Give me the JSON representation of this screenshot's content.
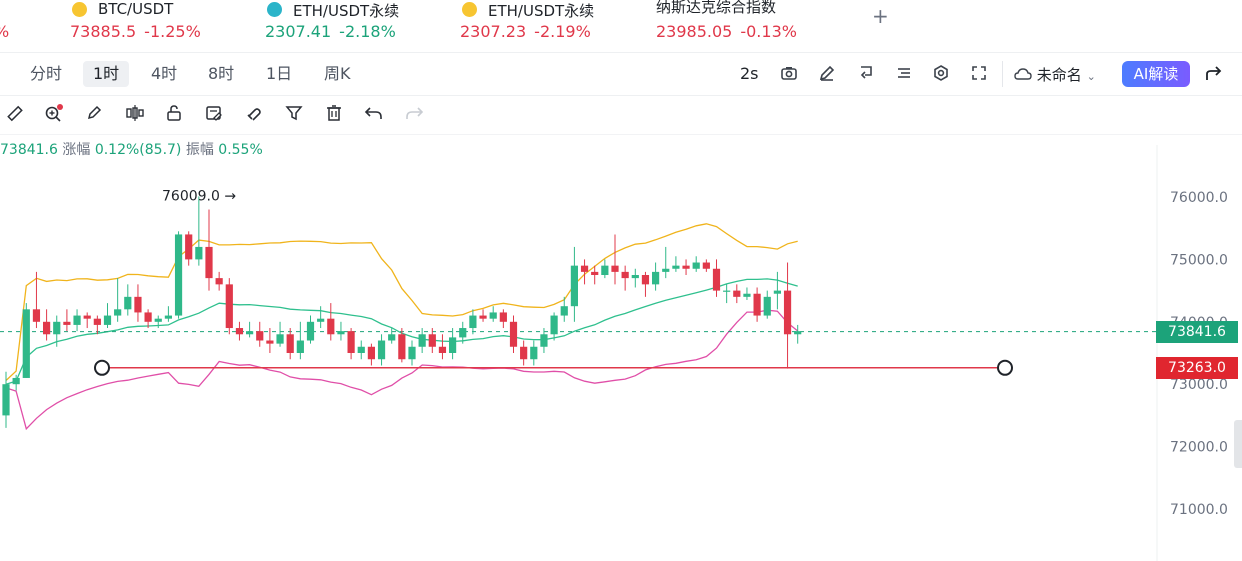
{
  "tickers": [
    {
      "name": "",
      "price": "",
      "change": "%",
      "dir": "down",
      "icon": ""
    },
    {
      "name": "BTC/USDT",
      "price": "73885.5",
      "change": "-1.25%",
      "dir": "down",
      "icon": "btc-coin-icon"
    },
    {
      "name": "ETH/USDT永续",
      "price": "2307.41",
      "change": "-2.18%",
      "dir": "up",
      "icon": "eth-coin-icon"
    },
    {
      "name": "ETH/USDT永续",
      "price": "2307.23",
      "change": "-2.19%",
      "dir": "down",
      "icon": "eth-coin-icon"
    },
    {
      "name": "纳斯达克综合指数",
      "price": "23985.05",
      "change": "-0.13%",
      "dir": "down",
      "icon": ""
    }
  ],
  "add_tab": "+",
  "timeframes": [
    "分时",
    "1时",
    "4时",
    "8时",
    "1日",
    "周K"
  ],
  "active_timeframe": "1时",
  "toolbar": {
    "refresh_interval": "2s",
    "template_name": "未命名",
    "ai_button": "AI解读"
  },
  "draw_tools": [
    "ruler-icon",
    "zoom-icon",
    "brush-icon",
    "candle-style-icon",
    "lock-icon",
    "note-icon",
    "magnet-icon",
    "filter-icon",
    "trash-icon",
    "undo-icon",
    "redo-icon"
  ],
  "info": {
    "last": "73841.6",
    "change_label": "涨幅",
    "change_value": "0.12%(85.7)",
    "amp_label": "振幅",
    "amp_value": "0.55%"
  },
  "chart_data": {
    "type": "candlestick",
    "ylim": [
      70500,
      76700
    ],
    "y_ticks": [
      "76000.0",
      "75000.0",
      "74000.0",
      "73000.0",
      "72000.0",
      "71000.0"
    ],
    "current_price": "73841.6",
    "line_price": "73263.0",
    "high_annotation": "76009.0",
    "colors": {
      "up": "#2fb889",
      "down": "#e0384a",
      "upper_band": "#f0b41c",
      "mid_band": "#2fc08e",
      "lower_band": "#e04fa8",
      "hline": "#e0384a"
    },
    "candles": [
      [
        72500,
        73000,
        72300,
        73200
      ],
      [
        73000,
        73100,
        72900,
        73150
      ],
      [
        73100,
        74200,
        73100,
        74300
      ],
      [
        74200,
        74000,
        73900,
        74800
      ],
      [
        74000,
        73800,
        73700,
        74200
      ],
      [
        73800,
        74000,
        73600,
        74100
      ],
      [
        74000,
        73950,
        73850,
        74200
      ],
      [
        73950,
        74100,
        73850,
        74200
      ],
      [
        74100,
        74050,
        73900,
        74150
      ],
      [
        74050,
        73950,
        73800,
        74100
      ],
      [
        73950,
        74100,
        73900,
        74300
      ],
      [
        74100,
        74200,
        74000,
        74700
      ],
      [
        74200,
        74400,
        74100,
        74600
      ],
      [
        74400,
        74150,
        74000,
        74600
      ],
      [
        74150,
        74000,
        73900,
        74200
      ],
      [
        74000,
        74050,
        73900,
        74100
      ],
      [
        74050,
        74100,
        74000,
        74250
      ],
      [
        74100,
        75400,
        74050,
        75450
      ],
      [
        75400,
        75000,
        74900,
        75450
      ],
      [
        75000,
        75200,
        74900,
        76009
      ],
      [
        75200,
        74700,
        74500,
        75800
      ],
      [
        74700,
        74600,
        74500,
        74800
      ],
      [
        74600,
        73900,
        73800,
        74700
      ],
      [
        73900,
        73800,
        73700,
        74000
      ],
      [
        73800,
        73850,
        73750,
        74000
      ],
      [
        73850,
        73700,
        73600,
        74000
      ],
      [
        73700,
        73650,
        73500,
        73900
      ],
      [
        73650,
        73800,
        73600,
        74000
      ],
      [
        73800,
        73500,
        73400,
        73900
      ],
      [
        73500,
        73700,
        73400,
        74000
      ],
      [
        73700,
        74000,
        73650,
        74100
      ],
      [
        74000,
        74050,
        73900,
        74250
      ],
      [
        74050,
        73800,
        73700,
        74300
      ],
      [
        73800,
        73850,
        73700,
        74000
      ],
      [
        73850,
        73500,
        73400,
        73900
      ],
      [
        73500,
        73600,
        73400,
        73700
      ],
      [
        73600,
        73400,
        73300,
        73650
      ],
      [
        73400,
        73700,
        73300,
        73800
      ],
      [
        73700,
        73800,
        73650,
        73900
      ],
      [
        73800,
        73400,
        73350,
        73900
      ],
      [
        73400,
        73600,
        73300,
        73700
      ],
      [
        73600,
        73800,
        73500,
        73900
      ],
      [
        73800,
        73600,
        73500,
        73900
      ],
      [
        73600,
        73500,
        73400,
        73800
      ],
      [
        73500,
        73750,
        73400,
        73900
      ],
      [
        73750,
        73900,
        73650,
        74000
      ],
      [
        73900,
        74100,
        73800,
        74200
      ],
      [
        74100,
        74050,
        74000,
        74200
      ],
      [
        74050,
        74150,
        74000,
        74250
      ],
      [
        74150,
        74000,
        73900,
        74200
      ],
      [
        74000,
        73600,
        73500,
        74100
      ],
      [
        73600,
        73400,
        73300,
        73700
      ],
      [
        73400,
        73600,
        73300,
        73700
      ],
      [
        73600,
        73800,
        73500,
        73900
      ],
      [
        73800,
        74100,
        73700,
        74150
      ],
      [
        74100,
        74250,
        74000,
        74400
      ],
      [
        74250,
        74900,
        74000,
        75200
      ],
      [
        74900,
        74800,
        74600,
        75000
      ],
      [
        74800,
        74750,
        74600,
        74900
      ],
      [
        74750,
        74900,
        74700,
        75000
      ],
      [
        74900,
        74800,
        74600,
        75400
      ],
      [
        74800,
        74700,
        74500,
        74900
      ],
      [
        74700,
        74750,
        74550,
        74850
      ],
      [
        74750,
        74600,
        74400,
        74800
      ],
      [
        74600,
        74800,
        74500,
        74950
      ],
      [
        74800,
        74850,
        74700,
        75200
      ],
      [
        74850,
        74900,
        74800,
        75050
      ],
      [
        74900,
        74850,
        74750,
        75000
      ],
      [
        74850,
        74950,
        74800,
        75050
      ],
      [
        74950,
        74850,
        74800,
        75000
      ],
      [
        74850,
        74500,
        74400,
        75000
      ],
      [
        74500,
        74500,
        74300,
        74600
      ],
      [
        74500,
        74400,
        74300,
        74600
      ],
      [
        74400,
        74450,
        74350,
        74550
      ],
      [
        74450,
        74100,
        74000,
        74550
      ],
      [
        74100,
        74400,
        74050,
        74500
      ],
      [
        74450,
        74500,
        74200,
        74800
      ],
      [
        74500,
        73800,
        73250,
        74950
      ],
      [
        73800,
        73850,
        73650,
        73950
      ]
    ]
  }
}
